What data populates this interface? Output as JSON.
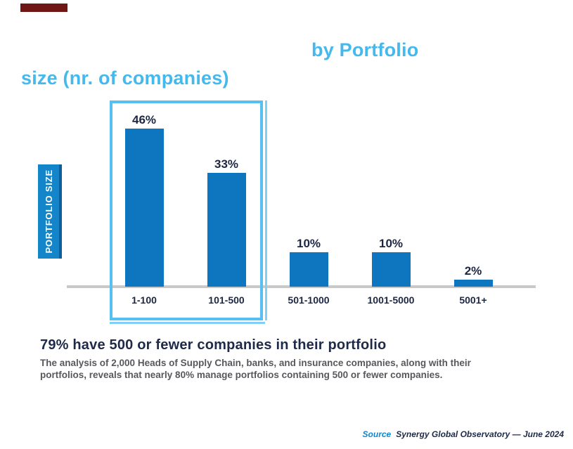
{
  "title": {
    "line1": "by Portfolio",
    "line2": "size (nr. of companies)",
    "color": "#45b8ec"
  },
  "y_axis_label": "PORTFOLIO SIZE",
  "chart_data": {
    "type": "bar",
    "categories": [
      "1-100",
      "101-500",
      "501-1000",
      "1001-5000",
      "5001+"
    ],
    "values": [
      46,
      33,
      10,
      10,
      2
    ],
    "value_labels": [
      "46%",
      "33%",
      "10%",
      "10%",
      "2%"
    ],
    "title": "by Portfolio size (nr. of companies)",
    "xlabel": "",
    "ylabel": "PORTFOLIO SIZE",
    "ylim": [
      0,
      50
    ],
    "grid": false,
    "legend": "none",
    "bar_color": "#0e76bf",
    "highlight": {
      "categories_boxed": [
        "1-100",
        "101-500"
      ],
      "box_color": "#56c0f0"
    }
  },
  "headline": "79% have 500 or fewer companies in their portfolio",
  "paragraph": "The analysis of 2,000 Heads of Supply Chain, banks, and insurance companies, along with their portfolios, reveals that nearly 80% manage portfolios containing 500 or fewer companies.",
  "source": {
    "label": "Source",
    "text": "Synergy Global Observatory — June 2024"
  },
  "colors": {
    "accent_light_blue": "#45b8ec",
    "bar_blue": "#0e76bf",
    "ylabel_box_blue": "#1485c9",
    "navy_text": "#1d2742",
    "paragraph_gray": "#57585c",
    "axis_gray": "#c9c9c9",
    "brand_mark_red": "#6f1712"
  }
}
